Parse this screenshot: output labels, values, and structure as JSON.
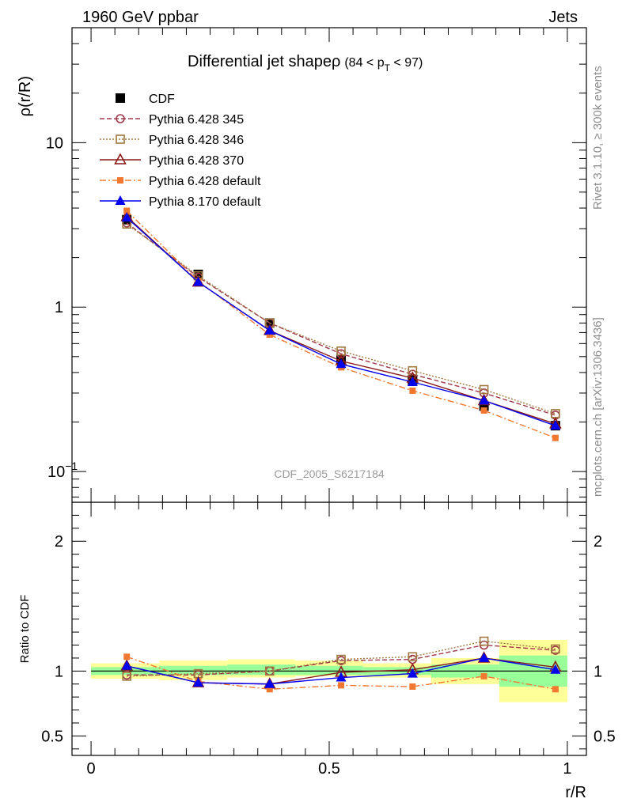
{
  "header": {
    "left": "1960 GeV ppbar",
    "right": "Jets"
  },
  "side_labels": {
    "rivet": "Rivet 3.1.10, ≥ 300k events",
    "mcplots": "mcplots.cern.ch [arXiv:1306.3436]"
  },
  "chart_data": [
    {
      "type": "line",
      "title": "Differential jet shapeρ",
      "title_range": "(84 < p",
      "title_range_sub": "T",
      "title_range_tail": " < 97)",
      "ylabel": "ρ(r/R)",
      "watermark": "CDF_2005_S6217184",
      "yscale": "log",
      "ylim": [
        0.065,
        50
      ],
      "xlim": [
        -0.04,
        1.04
      ],
      "yticks": [
        {
          "v": 0.1,
          "label": "10",
          "sup": "−1"
        },
        {
          "v": 1,
          "label": "1",
          "sup": ""
        },
        {
          "v": 10,
          "label": "10",
          "sup": ""
        }
      ],
      "legend_position": "top-left",
      "x": [
        0.075,
        0.225,
        0.375,
        0.525,
        0.675,
        0.825,
        0.975
      ],
      "series": [
        {
          "name": "CDF",
          "color": "#000000",
          "marker": "square-filled",
          "dash": "none",
          "values": [
            3.4,
            1.58,
            0.8,
            0.48,
            0.36,
            0.25,
            0.19
          ]
        },
        {
          "name": "Pythia 6.428 345",
          "color": "#a0384a",
          "marker": "circle-open",
          "dash": "6,3",
          "values": [
            3.25,
            1.52,
            0.8,
            0.52,
            0.39,
            0.3,
            0.22
          ]
        },
        {
          "name": "Pythia 6.428 346",
          "color": "#a07840",
          "marker": "square-open",
          "dash": "2,2",
          "values": [
            3.2,
            1.55,
            0.8,
            0.54,
            0.41,
            0.315,
            0.225
          ]
        },
        {
          "name": "Pythia 6.428 370",
          "color": "#8b1a1a",
          "marker": "triangle-open",
          "dash": "none",
          "values": [
            3.55,
            1.42,
            0.72,
            0.47,
            0.37,
            0.27,
            0.195
          ]
        },
        {
          "name": "Pythia 6.428 default",
          "color": "#f07830",
          "marker": "square-small",
          "dash": "8,3,2,3",
          "values": [
            3.85,
            1.44,
            0.68,
            0.43,
            0.31,
            0.235,
            0.16
          ]
        },
        {
          "name": "Pythia 8.170 default",
          "color": "#0000ee",
          "marker": "triangle-filled",
          "dash": "none",
          "values": [
            3.5,
            1.42,
            0.72,
            0.45,
            0.35,
            0.27,
            0.19
          ]
        }
      ]
    },
    {
      "type": "line",
      "ylabel": "Ratio to CDF",
      "xlabel": "r/R",
      "yscale": "linear",
      "ylim": [
        0.35,
        2.3
      ],
      "xlim": [
        -0.04,
        1.04
      ],
      "yticks": [
        {
          "v": 0.5,
          "label": "0.5"
        },
        {
          "v": 1,
          "label": "1"
        },
        {
          "v": 2,
          "label": "2"
        }
      ],
      "xticks": [
        {
          "v": 0,
          "label": "0"
        },
        {
          "v": 0.5,
          "label": "0.5"
        },
        {
          "v": 1,
          "label": "1"
        }
      ],
      "bins": [
        0,
        0.143,
        0.286,
        0.429,
        0.571,
        0.714,
        0.857,
        1.0
      ],
      "yellow_band": [
        [
          0.94,
          1.06
        ],
        [
          0.93,
          1.08
        ],
        [
          0.95,
          1.09
        ],
        [
          0.96,
          1.08
        ],
        [
          0.95,
          1.06
        ],
        [
          0.9,
          1.1
        ],
        [
          0.76,
          1.24
        ]
      ],
      "green_band": [
        [
          0.97,
          1.03
        ],
        [
          0.97,
          1.04
        ],
        [
          0.97,
          1.05
        ],
        [
          0.97,
          1.04
        ],
        [
          0.97,
          1.03
        ],
        [
          0.95,
          1.05
        ],
        [
          0.88,
          1.12
        ]
      ],
      "x": [
        0.075,
        0.225,
        0.375,
        0.525,
        0.675,
        0.825,
        0.975
      ],
      "series": [
        {
          "name": "Pythia 6.428 345",
          "values": [
            0.97,
            0.97,
            1.0,
            1.08,
            1.09,
            1.2,
            1.16
          ]
        },
        {
          "name": "Pythia 6.428 346",
          "values": [
            0.96,
            0.98,
            1.0,
            1.09,
            1.11,
            1.23,
            1.17
          ]
        },
        {
          "name": "Pythia 6.428 370",
          "values": [
            1.04,
            0.91,
            0.9,
            0.99,
            1.01,
            1.1,
            1.03
          ]
        },
        {
          "name": "Pythia 6.428 default",
          "values": [
            1.11,
            0.92,
            0.86,
            0.89,
            0.88,
            0.96,
            0.86
          ]
        },
        {
          "name": "Pythia 8.170 default",
          "values": [
            1.04,
            0.91,
            0.9,
            0.95,
            0.98,
            1.1,
            1.01
          ]
        }
      ]
    }
  ]
}
